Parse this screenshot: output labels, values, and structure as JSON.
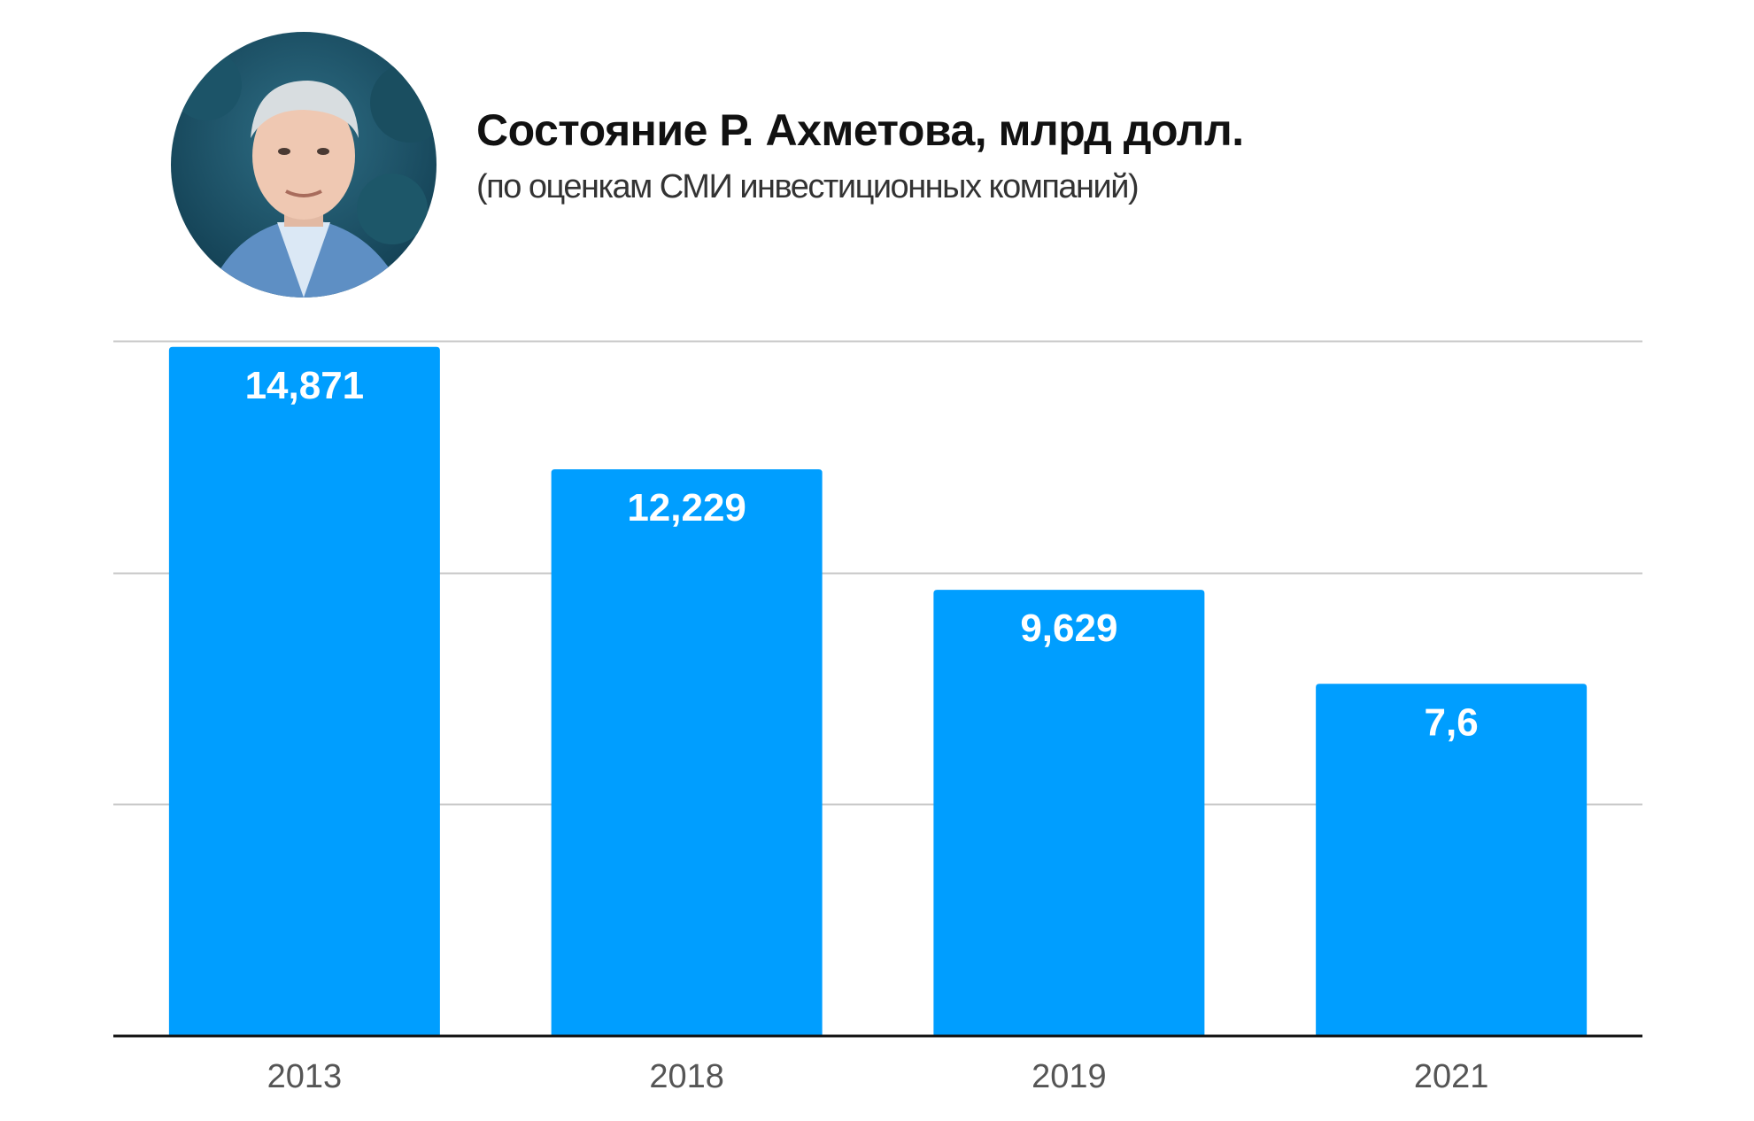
{
  "header": {
    "title": "Состояние Р. Ахметова, млрд долл.",
    "subtitle": "(по оценкам СМИ инвестиционных компаний)"
  },
  "portrait": {
    "icon": "portrait-photo"
  },
  "colors": {
    "bar": "#009EFF",
    "grid": "#C8C8C8",
    "axis": "#111111",
    "label_inside": "#FFFFFF",
    "tick": "#555555"
  },
  "chart_data": {
    "type": "bar",
    "categories": [
      "2013",
      "2018",
      "2019",
      "2021"
    ],
    "values": [
      14.871,
      12.229,
      9.629,
      7.6
    ],
    "value_labels": [
      "14,871",
      "12,229",
      "9,629",
      "7,6"
    ],
    "ylim": [
      0,
      15
    ],
    "grid": true
  }
}
